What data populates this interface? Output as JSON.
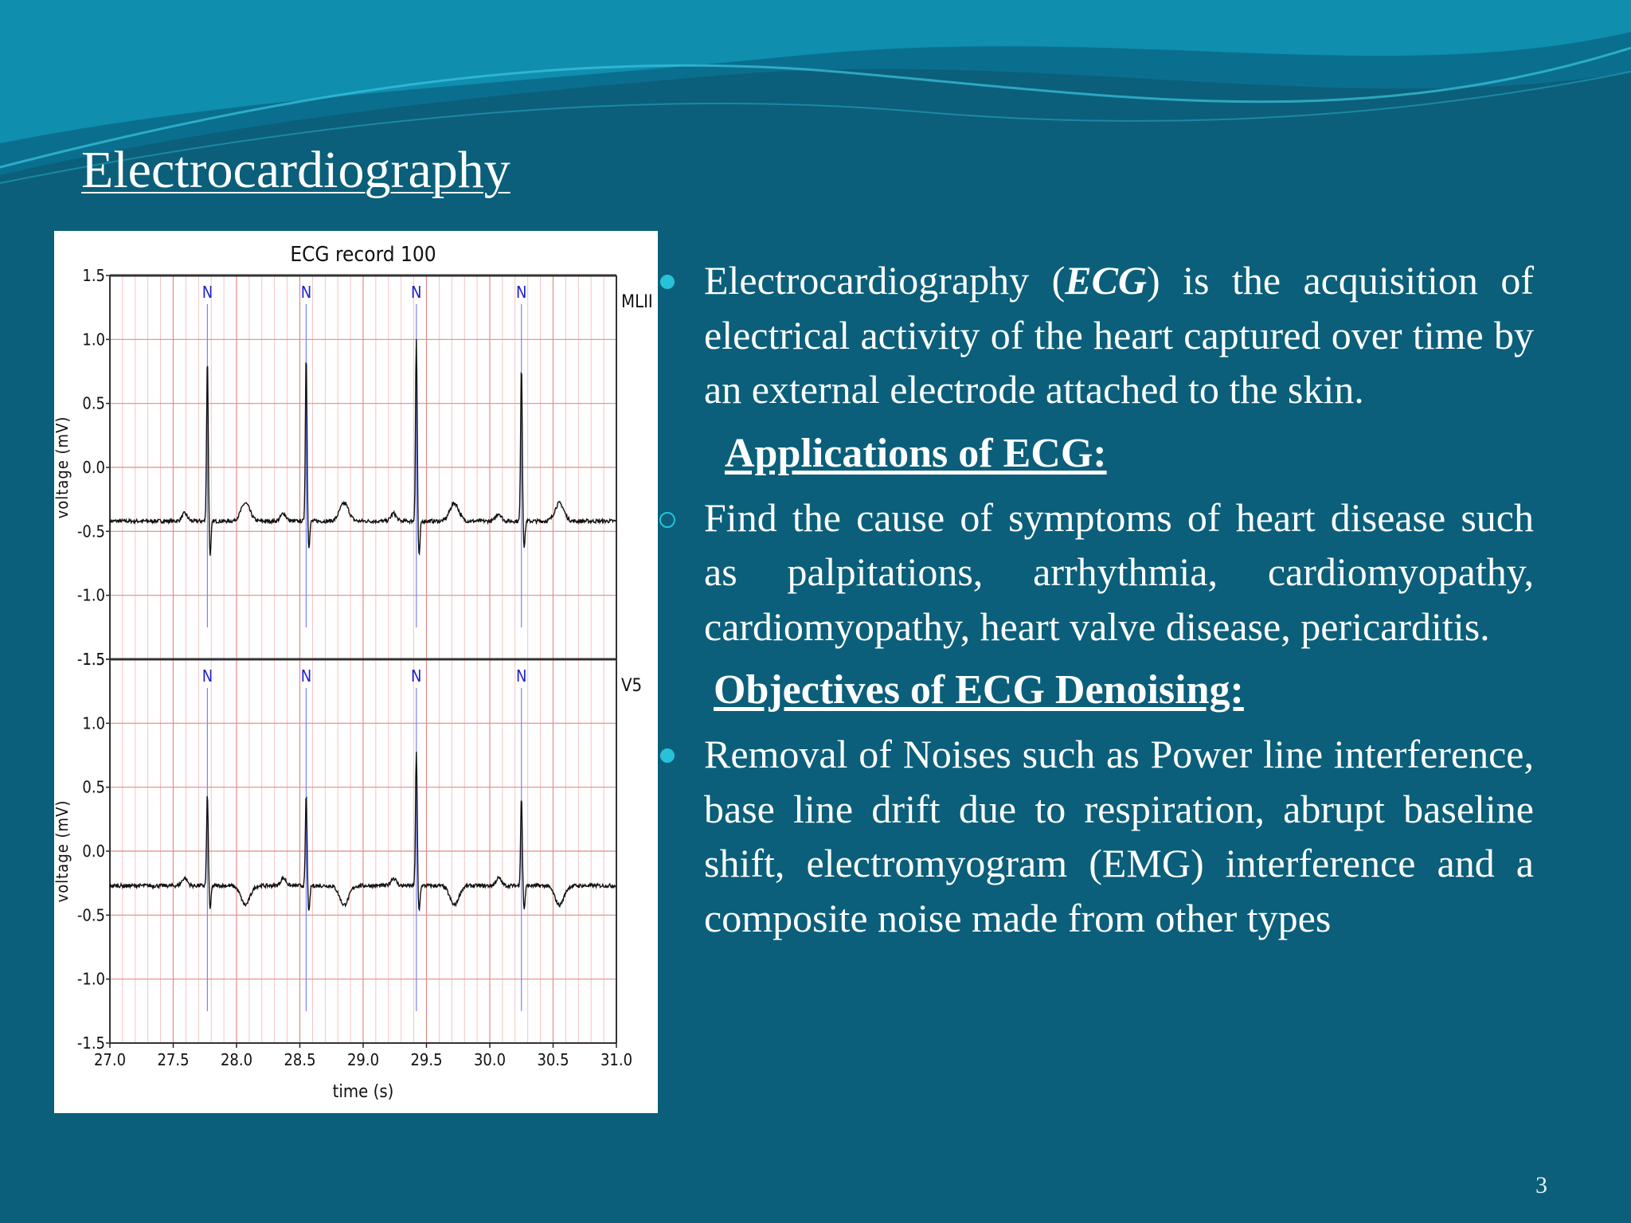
{
  "slide": {
    "title": "Electrocardiography",
    "page_number": "3",
    "colors": {
      "background": "#0b5f7a",
      "wave_light": "#1ba7c4",
      "wave_dark": "#086a88",
      "bullet": "#27c2d8",
      "text": "#ffffff"
    }
  },
  "content": {
    "intro": {
      "text_before": "Electrocardiography (",
      "emphasis": "ECG",
      "text_after": ") is the acquisition of electrical activity of the heart captured over time by an external electrode attached to the skin."
    },
    "applications_heading": "Applications of ECG:",
    "applications_text": "Find the cause of symptoms of heart disease such as palpitations, arrhythmia, cardiomyopathy, cardiomyopathy, heart valve disease, pericarditis.",
    "objectives_heading": "Objectives of ECG Denoising:",
    "objectives_text": "Removal of Noises such as Power line interference, base line drift due to respiration, abrupt baseline shift, electromyogram (EMG) interference and a composite noise made from other types"
  },
  "chart_data": {
    "type": "line",
    "title": "ECG record 100",
    "xlabel": "time (s)",
    "ylabel": "voltage (mV)",
    "xlim": [
      27.0,
      31.0
    ],
    "ylim": [
      -1.5,
      1.5
    ],
    "x_ticks": [
      "27.0",
      "27.5",
      "28.0",
      "28.5",
      "29.0",
      "29.5",
      "30.0",
      "30.5",
      "31.0"
    ],
    "y_ticks": [
      "1.5",
      "1.0",
      "0.5",
      "0.0",
      "-0.5",
      "-1.0",
      "-1.5"
    ],
    "grid": true,
    "beat_annotation": "N",
    "beat_times": [
      27.77,
      28.55,
      29.42,
      30.25
    ],
    "leads": [
      {
        "name": "MLII",
        "baseline": -0.42,
        "r_peaks": [
          0.85,
          0.88,
          1.0,
          0.8
        ],
        "s_troughs": [
          -0.68,
          -0.62,
          -0.7,
          -0.62
        ],
        "t_wave_height": 0.14
      },
      {
        "name": "V5",
        "baseline": -0.27,
        "r_peaks": [
          0.45,
          0.45,
          0.78,
          0.43
        ],
        "s_troughs": [
          -0.45,
          -0.48,
          -0.47,
          -0.45
        ],
        "t_wave_height": -0.15
      }
    ]
  }
}
